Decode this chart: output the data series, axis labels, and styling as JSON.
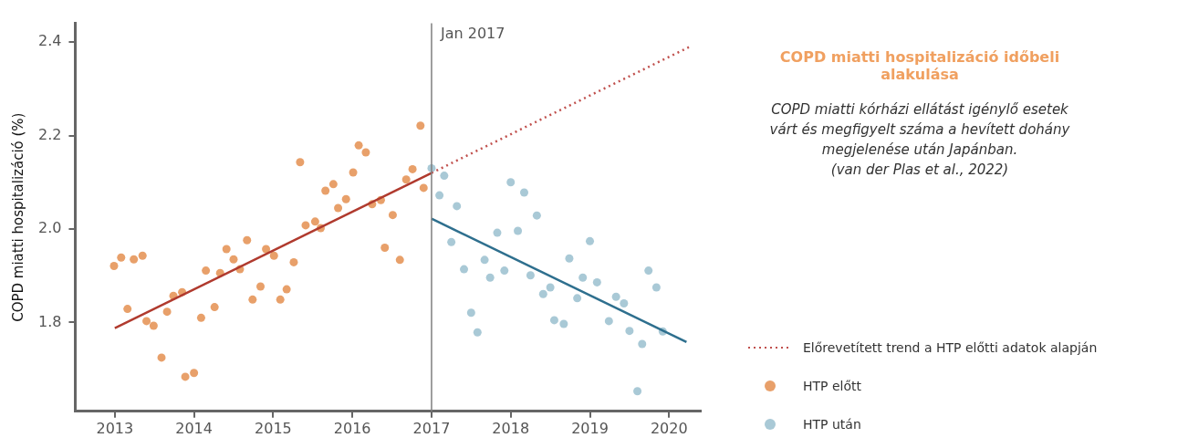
{
  "chart_data": {
    "type": "scatter",
    "title": "COPD miatti hospitalizáció időbeli alakulása",
    "subtitle": "COPD miatti kórházi ellátást igénylő esetek várt és megfigyelt száma a hevített dohány megjelenése után Japánban.",
    "annotations": [
      "(van der Plas et al., 2022)"
    ],
    "ylabel": "COPD miatti hospitalizáció (%)",
    "xlim": [
      2012.5,
      2020.4
    ],
    "xticks": [
      2013,
      2014,
      2015,
      2016,
      2017,
      2018,
      2019,
      2020
    ],
    "ylim": [
      1.61,
      2.44
    ],
    "yticks": [
      {
        "value": 1.8,
        "label": "1.8"
      },
      {
        "value": 2,
        "label": "2.0"
      },
      {
        "value": 2.2,
        "label": "2.2"
      },
      {
        "value": 2.4,
        "label": "2.4"
      }
    ],
    "grid": false,
    "legend": "right",
    "ref_lines": [
      {
        "axis": "x",
        "value": 2017,
        "label": "Jan 2017",
        "color": "#7f7f7f"
      }
    ],
    "series": [
      {
        "type": "line",
        "name": "Előrevetített trend a HTP előtti adatok alapján",
        "color": "#c0504d",
        "line_style": "dotted",
        "marker": "none",
        "x": [
          2017,
          2020.25
        ],
        "values": [
          2.12,
          2.389
        ]
      },
      {
        "name": "HTP előtt",
        "color": "#e8a06a",
        "marker": "circle",
        "x": [
          2012.99,
          2013.08,
          2013.16,
          2013.24,
          2013.35,
          2013.4,
          2013.49,
          2013.59,
          2013.66,
          2013.74,
          2013.85,
          2013.89,
          2014.0,
          2014.09,
          2014.15,
          2014.26,
          2014.33,
          2014.41,
          2014.5,
          2014.58,
          2014.67,
          2014.74,
          2014.84,
          2014.91,
          2015.01,
          2015.09,
          2015.17,
          2015.26,
          2015.34,
          2015.41,
          2015.53,
          2015.6,
          2015.66,
          2015.76,
          2015.82,
          2015.92,
          2016.01,
          2016.08,
          2016.17,
          2016.25,
          2016.36,
          2016.41,
          2016.51,
          2016.6,
          2016.68,
          2016.76,
          2016.86,
          2016.9
        ],
        "values": [
          1.921,
          1.939,
          1.829,
          1.935,
          1.943,
          1.803,
          1.793,
          1.725,
          1.823,
          1.857,
          1.865,
          1.684,
          1.692,
          1.81,
          1.911,
          1.833,
          1.906,
          1.957,
          1.935,
          1.914,
          1.976,
          1.849,
          1.877,
          1.957,
          1.943,
          1.849,
          1.871,
          1.929,
          2.143,
          2.008,
          2.016,
          2.002,
          2.082,
          2.096,
          2.045,
          2.064,
          2.121,
          2.179,
          2.164,
          2.053,
          2.062,
          1.96,
          2.03,
          1.934,
          2.106,
          2.128,
          2.221,
          2.088
        ]
      },
      {
        "type": "line",
        "color": "#b03a2e",
        "line_style": "solid",
        "marker": "none",
        "x": [
          2013,
          2017
        ],
        "values": [
          1.788,
          2.12
        ]
      },
      {
        "name": "HTP után",
        "color": "#a9c9d6",
        "marker": "circle",
        "x": [
          2017.0,
          2017.1,
          2017.16,
          2017.25,
          2017.32,
          2017.41,
          2017.5,
          2017.58,
          2017.67,
          2017.74,
          2017.83,
          2017.92,
          2018.0,
          2018.09,
          2018.17,
          2018.25,
          2018.33,
          2018.41,
          2018.5,
          2018.55,
          2018.67,
          2018.74,
          2018.84,
          2018.91,
          2019.0,
          2019.09,
          2019.24,
          2019.33,
          2019.43,
          2019.5,
          2019.6,
          2019.66,
          2019.74,
          2019.84,
          2019.92
        ],
        "values": [
          2.13,
          2.072,
          2.114,
          1.972,
          2.049,
          1.914,
          1.821,
          1.779,
          1.934,
          1.896,
          1.992,
          1.911,
          2.1,
          1.996,
          2.078,
          1.901,
          2.029,
          1.861,
          1.875,
          1.805,
          1.797,
          1.937,
          1.852,
          1.896,
          1.974,
          1.886,
          1.803,
          1.855,
          1.841,
          1.782,
          1.653,
          1.754,
          1.911,
          1.875,
          1.781
        ]
      },
      {
        "type": "line",
        "color": "#2e6f8e",
        "line_style": "solid",
        "marker": "none",
        "x": [
          2017,
          2020.22
        ],
        "values": [
          2.022,
          1.758
        ]
      }
    ]
  }
}
